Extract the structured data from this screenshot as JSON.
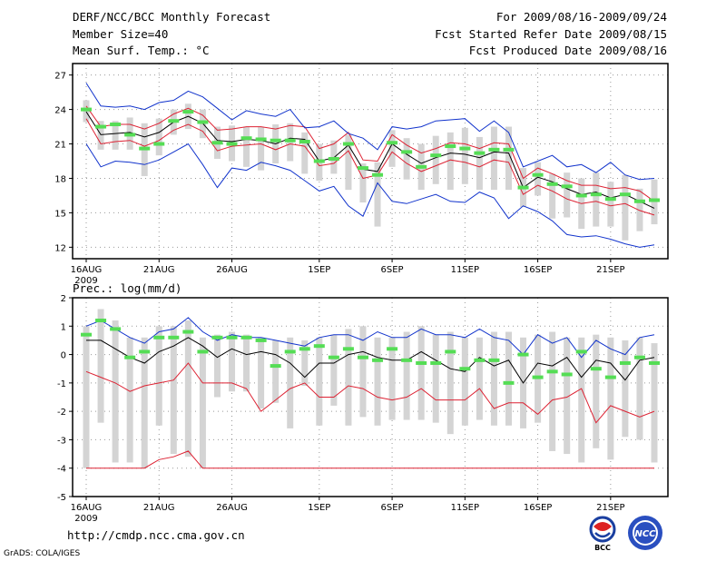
{
  "header": {
    "left": [
      "DERF/NCC/BCC Monthly Forecast",
      "Member Size=40",
      "Mean Surf. Temp.: °C"
    ],
    "right": [
      "For 2009/08/16-2009/09/24",
      "Fcst Started Refer Date 2009/08/15",
      "Fcst Produced Date 2009/08/16"
    ]
  },
  "footer": {
    "url": "http://cmdp.ncc.cma.gov.cn",
    "credit": "GrADS: COLA/IGES"
  },
  "logos": {
    "bcc": "BCC",
    "ncc": "NCC"
  },
  "colors": {
    "mean": "#000000",
    "spread": "#dd2233",
    "extreme": "#1133cc",
    "box": "#d4d4d4",
    "observed": "#55dd55",
    "grid": "#999999"
  },
  "chart_data": [
    {
      "type": "line",
      "title": "Mean Surf. Temp.: °C",
      "x_tick_labels": [
        "16AUG",
        "21AUG",
        "26AUG",
        "1SEP",
        "6SEP",
        "11SEP",
        "16SEP",
        "21SEP"
      ],
      "x_year_label": "2009",
      "x_tick_days": [
        1,
        6,
        11,
        17,
        22,
        27,
        32,
        37
      ],
      "days": 40,
      "ylim": [
        11,
        28
      ],
      "yticks": [
        12,
        15,
        18,
        21,
        24,
        27
      ],
      "grid": true,
      "series": [
        {
          "name": "mean",
          "values": [
            23.8,
            21.8,
            21.9,
            22.0,
            21.6,
            22.0,
            22.9,
            23.4,
            22.8,
            21.3,
            21.2,
            21.4,
            21.3,
            21.0,
            21.5,
            21.4,
            19.5,
            19.8,
            20.9,
            18.8,
            18.6,
            21.0,
            20.1,
            19.3,
            19.8,
            20.2,
            20.1,
            19.8,
            20.3,
            20.2,
            17.2,
            18.1,
            17.7,
            17.1,
            16.6,
            16.8,
            16.3,
            16.6,
            16.0,
            15.4
          ]
        },
        {
          "name": "mean + 1 sd",
          "values": [
            24.3,
            22.5,
            22.7,
            22.7,
            22.3,
            22.8,
            23.6,
            24.1,
            23.5,
            22.2,
            22.3,
            22.5,
            22.5,
            22.3,
            22.6,
            22.5,
            20.6,
            21.0,
            22.0,
            19.6,
            19.5,
            21.8,
            20.9,
            20.2,
            20.6,
            21.1,
            21.0,
            20.6,
            21.1,
            21.0,
            18.0,
            18.9,
            18.4,
            17.8,
            17.4,
            17.4,
            17.1,
            17.2,
            16.9,
            16.0
          ]
        },
        {
          "name": "mean - 1 sd",
          "values": [
            23.2,
            21.0,
            21.2,
            21.3,
            20.8,
            21.3,
            22.2,
            22.7,
            22.1,
            20.4,
            20.8,
            20.9,
            21.0,
            20.5,
            21.0,
            20.8,
            19.1,
            19.3,
            20.4,
            18.0,
            18.3,
            20.3,
            19.3,
            18.6,
            19.1,
            19.6,
            19.4,
            19.0,
            19.6,
            19.4,
            16.6,
            17.4,
            16.9,
            16.2,
            15.8,
            16.0,
            15.6,
            15.8,
            15.2,
            14.8
          ]
        },
        {
          "name": "ensemble max",
          "values": [
            26.3,
            24.3,
            24.2,
            24.3,
            24.0,
            24.6,
            24.8,
            25.6,
            25.1,
            24.1,
            23.1,
            23.9,
            23.6,
            23.4,
            24.0,
            22.4,
            22.5,
            23.0,
            21.9,
            21.5,
            20.5,
            22.5,
            22.3,
            22.5,
            23.0,
            23.1,
            23.2,
            22.1,
            23.0,
            22.0,
            19.0,
            19.5,
            20.0,
            19.0,
            19.2,
            18.5,
            19.4,
            18.3,
            17.9,
            18.0
          ]
        },
        {
          "name": "ensemble min",
          "values": [
            21.0,
            19.0,
            19.5,
            19.4,
            19.2,
            19.6,
            20.3,
            21.0,
            19.2,
            17.2,
            18.9,
            18.7,
            19.4,
            19.1,
            18.7,
            17.8,
            16.9,
            17.3,
            15.6,
            14.7,
            17.6,
            16.0,
            15.8,
            16.2,
            16.6,
            16.0,
            15.9,
            16.8,
            16.3,
            14.5,
            15.6,
            15.1,
            14.3,
            13.1,
            12.9,
            13.0,
            12.7,
            12.3,
            12.0,
            12.2
          ]
        }
      ],
      "box_ranges": [
        [
          22.9,
          24.8
        ],
        [
          20.5,
          23.0
        ],
        [
          20.5,
          23.0
        ],
        [
          20.5,
          23.3
        ],
        [
          18.2,
          22.8
        ],
        [
          20.0,
          23.2
        ],
        [
          21.8,
          24.0
        ],
        [
          22.3,
          24.5
        ],
        [
          21.5,
          24.0
        ],
        [
          19.7,
          22.5
        ],
        [
          19.5,
          22.6
        ],
        [
          19.0,
          22.5
        ],
        [
          18.7,
          22.5
        ],
        [
          19.3,
          22.7
        ],
        [
          19.5,
          22.8
        ],
        [
          18.4,
          22.0
        ],
        [
          17.8,
          21.0
        ],
        [
          18.4,
          21.3
        ],
        [
          17.0,
          21.8
        ],
        [
          15.9,
          19.3
        ],
        [
          13.8,
          19.4
        ],
        [
          19.0,
          22.2
        ],
        [
          17.9,
          21.5
        ],
        [
          17.0,
          21.0
        ],
        [
          17.5,
          21.7
        ],
        [
          17.0,
          22.0
        ],
        [
          17.5,
          22.4
        ],
        [
          17.0,
          21.6
        ],
        [
          17.0,
          22.5
        ],
        [
          17.0,
          22.5
        ],
        [
          15.5,
          18.9
        ],
        [
          16.5,
          19.4
        ],
        [
          14.5,
          18.4
        ],
        [
          14.6,
          18.5
        ],
        [
          13.6,
          18.0
        ],
        [
          13.8,
          18.5
        ],
        [
          13.8,
          17.7
        ],
        [
          12.6,
          18.3
        ],
        [
          13.4,
          17.1
        ],
        [
          14.0,
          17.9
        ]
      ],
      "observed": [
        24.0,
        22.5,
        22.7,
        21.8,
        20.6,
        21.0,
        23.0,
        23.8,
        22.9,
        21.1,
        21.0,
        21.5,
        21.4,
        21.3,
        21.3,
        21.2,
        19.5,
        19.7,
        21.0,
        18.9,
        18.3,
        21.1,
        20.3,
        19.0,
        20.0,
        20.8,
        20.6,
        20.2,
        20.5,
        20.5,
        17.2,
        18.3,
        17.5,
        17.3,
        16.5,
        16.6,
        16.2,
        16.6,
        16.0,
        16.1
      ]
    },
    {
      "type": "line",
      "title": "Prec.: log(mm/d)",
      "x_tick_labels": [
        "16AUG",
        "21AUG",
        "26AUG",
        "1SEP",
        "6SEP",
        "11SEP",
        "16SEP",
        "21SEP"
      ],
      "x_year_label": "2009",
      "x_tick_days": [
        1,
        6,
        11,
        17,
        22,
        27,
        32,
        37
      ],
      "days": 40,
      "ylim": [
        -5,
        2
      ],
      "yticks": [
        -5,
        -4,
        -3,
        -2,
        -1,
        0,
        1,
        2
      ],
      "grid": true,
      "series": [
        {
          "name": "mean",
          "values": [
            0.5,
            0.5,
            0.2,
            -0.1,
            -0.3,
            0.1,
            0.3,
            0.6,
            0.3,
            -0.1,
            0.2,
            0.0,
            0.1,
            0.0,
            -0.3,
            -0.8,
            -0.3,
            -0.3,
            0.0,
            0.1,
            -0.1,
            -0.2,
            -0.2,
            0.1,
            -0.2,
            -0.5,
            -0.6,
            -0.1,
            -0.4,
            -0.2,
            -1.0,
            -0.3,
            -0.4,
            -0.1,
            -0.8,
            -0.2,
            -0.3,
            -0.9,
            -0.2,
            -0.1
          ]
        },
        {
          "name": "max",
          "values": [
            1.0,
            1.2,
            0.9,
            0.6,
            0.4,
            0.8,
            0.9,
            1.3,
            0.8,
            0.5,
            0.7,
            0.6,
            0.6,
            0.5,
            0.4,
            0.3,
            0.6,
            0.7,
            0.7,
            0.5,
            0.8,
            0.6,
            0.6,
            0.9,
            0.7,
            0.7,
            0.6,
            0.9,
            0.6,
            0.5,
            0.0,
            0.7,
            0.4,
            0.6,
            -0.1,
            0.5,
            0.2,
            0.0,
            0.6,
            0.7
          ]
        },
        {
          "name": "ensemble upper",
          "values": [
            -0.6,
            -0.8,
            -1.0,
            -1.3,
            -1.1,
            -1.0,
            -0.9,
            -0.3,
            -1.0,
            -1.0,
            -1.0,
            -1.2,
            -2.0,
            -1.6,
            -1.2,
            -1.0,
            -1.5,
            -1.5,
            -1.1,
            -1.2,
            -1.5,
            -1.6,
            -1.5,
            -1.2,
            -1.6,
            -1.6,
            -1.6,
            -1.2,
            -1.9,
            -1.7,
            -1.7,
            -2.1,
            -1.6,
            -1.5,
            -1.2,
            -2.4,
            -1.8,
            -2.0,
            -2.2,
            -2.0
          ]
        },
        {
          "name": "ensemble lower",
          "values": [
            -4.0,
            -4.0,
            -4.0,
            -4.0,
            -4.0,
            -3.7,
            -3.6,
            -3.4,
            -4.0,
            -4.0,
            -4.0,
            -4.0,
            -4.0,
            -4.0,
            -4.0,
            -4.0,
            -4.0,
            -4.0,
            -4.0,
            -4.0,
            -4.0,
            -4.0,
            -4.0,
            -4.0,
            -4.0,
            -4.0,
            -4.0,
            -4.0,
            -4.0,
            -4.0,
            -4.0,
            -4.0,
            -4.0,
            -4.0,
            -4.0,
            -4.0,
            -4.0,
            -4.0,
            -4.0,
            -4.0
          ]
        }
      ],
      "box_ranges": [
        [
          -4.0,
          1.0
        ],
        [
          -2.4,
          1.6
        ],
        [
          -3.8,
          1.2
        ],
        [
          -3.8,
          0.6
        ],
        [
          -4.0,
          0.6
        ],
        [
          -2.5,
          1.0
        ],
        [
          -3.5,
          1.0
        ],
        [
          -3.6,
          1.2
        ],
        [
          -4.0,
          0.6
        ],
        [
          -1.5,
          0.7
        ],
        [
          -1.3,
          0.8
        ],
        [
          -1.3,
          0.7
        ],
        [
          -1.9,
          0.6
        ],
        [
          -1.7,
          0.5
        ],
        [
          -2.6,
          0.6
        ],
        [
          -1.1,
          0.5
        ],
        [
          -2.5,
          0.6
        ],
        [
          -1.8,
          0.7
        ],
        [
          -2.5,
          0.9
        ],
        [
          -2.2,
          1.0
        ],
        [
          -2.5,
          0.6
        ],
        [
          -2.3,
          0.6
        ],
        [
          -2.3,
          0.8
        ],
        [
          -2.3,
          1.0
        ],
        [
          -2.4,
          0.7
        ],
        [
          -2.8,
          0.8
        ],
        [
          -2.5,
          0.6
        ],
        [
          -2.3,
          0.6
        ],
        [
          -2.5,
          0.8
        ],
        [
          -2.5,
          0.8
        ],
        [
          -2.6,
          0.6
        ],
        [
          -2.4,
          0.7
        ],
        [
          -3.4,
          0.8
        ],
        [
          -3.5,
          0.6
        ],
        [
          -3.8,
          0.6
        ],
        [
          -3.3,
          0.7
        ],
        [
          -3.7,
          0.6
        ],
        [
          -2.9,
          0.5
        ],
        [
          -3.0,
          0.6
        ],
        [
          -3.8,
          0.4
        ]
      ],
      "observed": [
        0.7,
        1.2,
        0.9,
        -0.1,
        0.1,
        0.6,
        0.6,
        0.8,
        0.1,
        0.6,
        0.6,
        0.6,
        0.5,
        -0.4,
        0.1,
        0.2,
        0.3,
        -0.1,
        0.2,
        -0.1,
        -0.2,
        0.2,
        -0.2,
        -0.3,
        -0.3,
        0.1,
        -0.5,
        -0.2,
        -0.2,
        -1.0,
        0.0,
        -0.8,
        -0.6,
        -0.7,
        0.1,
        -0.5,
        -0.8,
        -0.3,
        -0.1,
        -0.3
      ]
    }
  ]
}
